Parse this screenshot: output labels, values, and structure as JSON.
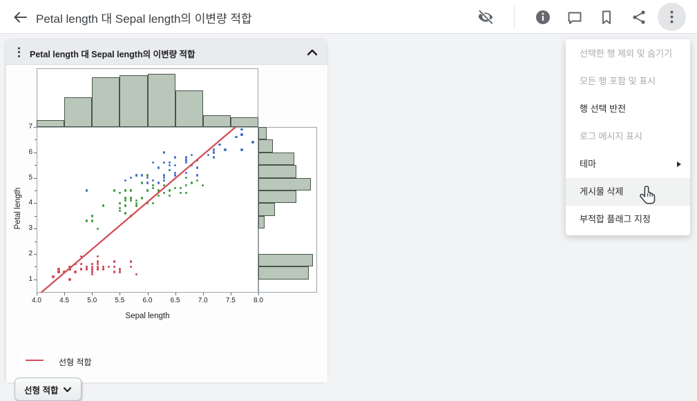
{
  "toolbar": {
    "title": "Petal length 대 Sepal length의 이변량 적합",
    "icons": [
      "back-arrow",
      "visibility-off",
      "info",
      "comment",
      "bookmark",
      "share",
      "more-vertical"
    ]
  },
  "menu": {
    "items": [
      {
        "label": "선택한 행 제외 및 숨기기",
        "enabled": false
      },
      {
        "label": "모든 행 포함 및 표시",
        "enabled": false
      },
      {
        "label": "행 선택 반전",
        "enabled": true
      },
      {
        "label": "로그 메시지 표시",
        "enabled": false
      },
      {
        "label": "테마",
        "enabled": true,
        "has_submenu": true
      },
      {
        "label": "게시물 삭제",
        "enabled": true,
        "highlighted": true,
        "cursor_over": true
      },
      {
        "label": "부적합 플래그 지정",
        "enabled": true
      }
    ]
  },
  "card": {
    "title": "Petal length 대 Sepal length의 이변량 적합",
    "collapse_icon": "chevron-up",
    "legend_label": "선형 적합",
    "fit_button_label": "선형 적합"
  },
  "chart_data": {
    "type": "scatter",
    "subtype": "scatter-with-marginal-histograms",
    "xlabel": "Sepal length",
    "ylabel": "Petal length",
    "xlim": [
      4.0,
      8.0
    ],
    "ylim": [
      0.5,
      7.0
    ],
    "x_ticks": [
      "4.0",
      "4.5",
      "5.0",
      "5.5",
      "6.0",
      "6.5",
      "7.0",
      "7.5",
      "8.0"
    ],
    "y_ticks": [
      "1",
      "2",
      "3",
      "4",
      "5",
      "6",
      "7"
    ],
    "grid": false,
    "legend": [
      {
        "label": "선형 적합",
        "color": "#d34d58",
        "marker": "line"
      }
    ],
    "fit_line": {
      "label": "선형 적합",
      "slope": 1.858,
      "intercept": -7.1,
      "color": "#d34d58"
    },
    "top_histogram": {
      "variable": "Sepal length",
      "bin_start": 4.0,
      "bin_width": 0.5,
      "counts": [
        4,
        18,
        30,
        31,
        32,
        22,
        7,
        6
      ],
      "fill": "#b9c7ba",
      "stroke": "#4a544a"
    },
    "right_histogram": {
      "variable": "Petal length",
      "bin_start": 1.0,
      "bin_width": 0.5,
      "counts": [
        24,
        26,
        0,
        0,
        3,
        8,
        18,
        25,
        18,
        17,
        7,
        4
      ],
      "fill": "#b9c7ba",
      "stroke": "#4a544a"
    },
    "series": [
      {
        "name": "group-red",
        "color": "#ce4a55",
        "points": [
          [
            5.1,
            1.4
          ],
          [
            4.9,
            1.4
          ],
          [
            4.7,
            1.3
          ],
          [
            4.6,
            1.5
          ],
          [
            5.0,
            1.4
          ],
          [
            5.4,
            1.7
          ],
          [
            4.6,
            1.4
          ],
          [
            5.0,
            1.5
          ],
          [
            4.4,
            1.4
          ],
          [
            4.9,
            1.5
          ],
          [
            5.4,
            1.5
          ],
          [
            4.8,
            1.6
          ],
          [
            4.8,
            1.4
          ],
          [
            4.3,
            1.1
          ],
          [
            5.8,
            1.2
          ],
          [
            5.7,
            1.5
          ],
          [
            5.4,
            1.3
          ],
          [
            5.1,
            1.4
          ],
          [
            5.7,
            1.7
          ],
          [
            5.1,
            1.5
          ],
          [
            5.4,
            1.7
          ],
          [
            5.1,
            1.5
          ],
          [
            4.6,
            1.0
          ],
          [
            5.1,
            1.7
          ],
          [
            4.8,
            1.9
          ],
          [
            5.0,
            1.6
          ],
          [
            5.0,
            1.6
          ],
          [
            5.2,
            1.5
          ],
          [
            5.2,
            1.4
          ],
          [
            4.7,
            1.6
          ],
          [
            4.8,
            1.6
          ],
          [
            5.4,
            1.5
          ],
          [
            5.2,
            1.5
          ],
          [
            5.5,
            1.4
          ],
          [
            4.9,
            1.5
          ],
          [
            5.0,
            1.2
          ],
          [
            5.5,
            1.3
          ],
          [
            4.9,
            1.4
          ],
          [
            4.4,
            1.3
          ],
          [
            5.1,
            1.5
          ],
          [
            5.0,
            1.3
          ],
          [
            4.5,
            1.3
          ],
          [
            4.4,
            1.3
          ],
          [
            5.0,
            1.6
          ],
          [
            5.1,
            1.9
          ],
          [
            4.8,
            1.4
          ],
          [
            5.1,
            1.6
          ],
          [
            4.6,
            1.4
          ],
          [
            5.3,
            1.5
          ],
          [
            5.0,
            1.4
          ]
        ]
      },
      {
        "name": "group-green",
        "color": "#3c9a3c",
        "points": [
          [
            7.0,
            4.7
          ],
          [
            6.4,
            4.5
          ],
          [
            6.9,
            4.9
          ],
          [
            5.5,
            4.0
          ],
          [
            6.5,
            4.6
          ],
          [
            5.7,
            4.5
          ],
          [
            6.3,
            4.7
          ],
          [
            4.9,
            3.3
          ],
          [
            6.6,
            4.6
          ],
          [
            5.2,
            3.9
          ],
          [
            5.0,
            3.5
          ],
          [
            5.9,
            4.2
          ],
          [
            6.0,
            4.0
          ],
          [
            6.1,
            4.7
          ],
          [
            5.6,
            3.6
          ],
          [
            6.7,
            4.4
          ],
          [
            5.6,
            4.5
          ],
          [
            5.8,
            4.1
          ],
          [
            6.2,
            4.5
          ],
          [
            5.6,
            3.9
          ],
          [
            5.9,
            4.8
          ],
          [
            6.1,
            4.0
          ],
          [
            6.3,
            4.9
          ],
          [
            6.1,
            4.7
          ],
          [
            6.4,
            4.3
          ],
          [
            6.6,
            4.4
          ],
          [
            6.8,
            4.8
          ],
          [
            6.7,
            5.0
          ],
          [
            6.0,
            4.5
          ],
          [
            5.7,
            3.5
          ],
          [
            5.5,
            3.8
          ],
          [
            5.5,
            3.7
          ],
          [
            5.8,
            3.9
          ],
          [
            6.0,
            5.1
          ],
          [
            5.4,
            4.5
          ],
          [
            6.0,
            4.5
          ],
          [
            6.7,
            4.7
          ],
          [
            6.3,
            4.4
          ],
          [
            5.6,
            4.1
          ],
          [
            5.5,
            4.0
          ],
          [
            5.5,
            4.4
          ],
          [
            6.1,
            4.6
          ],
          [
            5.8,
            4.0
          ],
          [
            5.0,
            3.3
          ],
          [
            5.6,
            4.2
          ],
          [
            5.7,
            4.2
          ],
          [
            5.7,
            4.2
          ],
          [
            6.2,
            4.3
          ],
          [
            5.1,
            3.0
          ],
          [
            5.7,
            4.1
          ]
        ]
      },
      {
        "name": "group-blue",
        "color": "#4670c8",
        "points": [
          [
            6.3,
            6.0
          ],
          [
            5.8,
            5.1
          ],
          [
            7.1,
            5.9
          ],
          [
            6.3,
            5.6
          ],
          [
            6.5,
            5.8
          ],
          [
            7.6,
            6.6
          ],
          [
            4.9,
            4.5
          ],
          [
            7.3,
            6.3
          ],
          [
            6.7,
            5.8
          ],
          [
            7.2,
            6.1
          ],
          [
            6.5,
            5.1
          ],
          [
            6.4,
            5.3
          ],
          [
            6.8,
            5.5
          ],
          [
            5.7,
            5.0
          ],
          [
            5.8,
            5.1
          ],
          [
            6.4,
            5.3
          ],
          [
            6.5,
            5.5
          ],
          [
            7.7,
            6.7
          ],
          [
            7.7,
            6.9
          ],
          [
            6.0,
            5.0
          ],
          [
            6.9,
            5.7
          ],
          [
            5.6,
            4.9
          ],
          [
            7.7,
            6.7
          ],
          [
            6.3,
            4.9
          ],
          [
            6.7,
            5.7
          ],
          [
            7.2,
            6.0
          ],
          [
            6.2,
            4.8
          ],
          [
            6.1,
            4.9
          ],
          [
            6.4,
            5.6
          ],
          [
            7.2,
            5.8
          ],
          [
            7.4,
            6.1
          ],
          [
            7.9,
            6.4
          ],
          [
            6.4,
            5.6
          ],
          [
            6.3,
            5.1
          ],
          [
            6.1,
            5.6
          ],
          [
            7.7,
            6.1
          ],
          [
            6.3,
            5.6
          ],
          [
            6.4,
            5.5
          ],
          [
            6.0,
            4.8
          ],
          [
            6.9,
            5.4
          ],
          [
            6.7,
            5.6
          ],
          [
            6.9,
            5.1
          ],
          [
            5.8,
            5.1
          ],
          [
            6.8,
            5.9
          ],
          [
            6.7,
            5.7
          ],
          [
            6.7,
            5.2
          ],
          [
            6.3,
            5.0
          ],
          [
            6.5,
            5.2
          ],
          [
            6.2,
            5.4
          ],
          [
            5.9,
            5.1
          ]
        ]
      }
    ]
  }
}
